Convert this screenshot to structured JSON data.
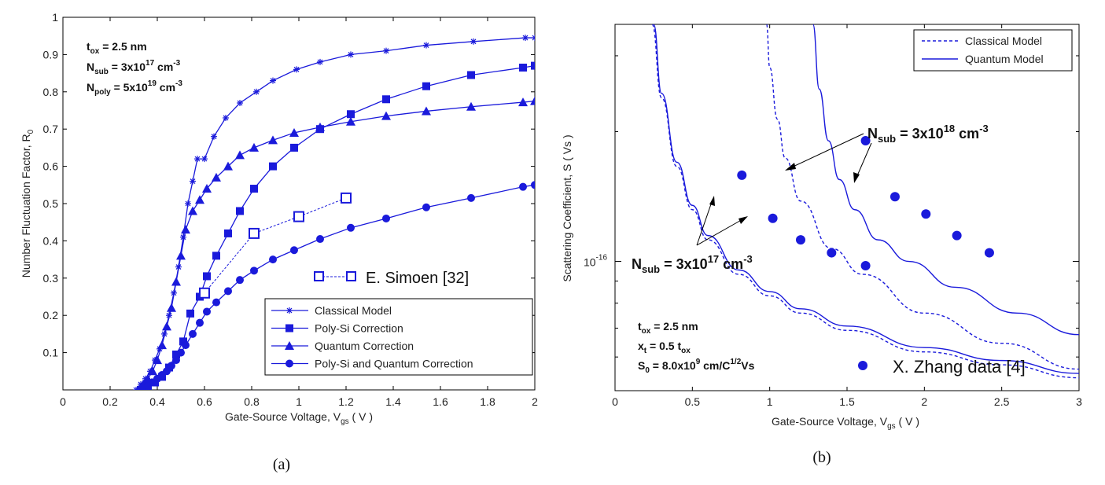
{
  "chart_data": [
    {
      "panel": "(a)",
      "type": "line",
      "xlabel": "Gate-Source Voltage, V",
      "xlabel_sub": "gs",
      "xlabel_tail": " ( V )",
      "ylabel": "Number Fluctuation Factor, R",
      "ylabel_sub": "0",
      "xlim": [
        0,
        2
      ],
      "ylim": [
        0,
        1
      ],
      "xticks": [
        "0",
        "0.2",
        "0.4",
        "0.6",
        "0.8",
        "1",
        "1.2",
        "1.4",
        "1.6",
        "1.8",
        "2"
      ],
      "yticks": [
        "0.1",
        "0.2",
        "0.3",
        "0.4",
        "0.5",
        "0.6",
        "0.7",
        "0.8",
        "0.9",
        "1"
      ],
      "annotations": {
        "tox": {
          "main": "t",
          "sub": "ox",
          "tail": " = 2.5 nm"
        },
        "nsub": {
          "main": "N",
          "sub": "sub",
          "mid": " = 3x10",
          "sup": "17",
          "tail": " cm",
          "sup2": "-3"
        },
        "npoly": {
          "main": "N",
          "sub": "poly",
          "mid": " = 5x10",
          "sup": "19",
          "tail": " cm",
          "sup2": "-3"
        }
      },
      "legend": [
        "Classical Model",
        "Poly-Si Correction",
        "Quantum Correction",
        "Poly-Si and Quantum Correction"
      ],
      "legend_placement": "bottom-right",
      "series": [
        {
          "name": "Classical Model",
          "marker": "star",
          "x": [
            0.31,
            0.33,
            0.35,
            0.37,
            0.39,
            0.41,
            0.43,
            0.45,
            0.47,
            0.49,
            0.51,
            0.53,
            0.55,
            0.57,
            0.6,
            0.64,
            0.69,
            0.75,
            0.82,
            0.89,
            0.99,
            1.09,
            1.22,
            1.37,
            1.54,
            1.74,
            1.96,
            2.0
          ],
          "y": [
            0.0,
            0.015,
            0.03,
            0.05,
            0.08,
            0.11,
            0.15,
            0.2,
            0.26,
            0.33,
            0.41,
            0.5,
            0.56,
            0.62,
            0.62,
            0.68,
            0.73,
            0.77,
            0.8,
            0.83,
            0.86,
            0.88,
            0.9,
            0.91,
            0.925,
            0.935,
            0.945,
            0.945
          ]
        },
        {
          "name": "Poly-Si Correction",
          "marker": "square",
          "x": [
            0.33,
            0.36,
            0.39,
            0.42,
            0.45,
            0.48,
            0.51,
            0.54,
            0.58,
            0.61,
            0.65,
            0.7,
            0.75,
            0.81,
            0.89,
            0.98,
            1.09,
            1.22,
            1.37,
            1.54,
            1.73,
            1.95,
            2.0
          ],
          "y": [
            0.0,
            0.01,
            0.02,
            0.035,
            0.06,
            0.095,
            0.13,
            0.205,
            0.25,
            0.305,
            0.36,
            0.42,
            0.48,
            0.54,
            0.6,
            0.65,
            0.7,
            0.74,
            0.78,
            0.815,
            0.845,
            0.865,
            0.87
          ]
        },
        {
          "name": "Quantum Correction",
          "marker": "triangle",
          "x": [
            0.32,
            0.34,
            0.36,
            0.38,
            0.4,
            0.42,
            0.44,
            0.46,
            0.48,
            0.5,
            0.52,
            0.55,
            0.58,
            0.61,
            0.65,
            0.7,
            0.75,
            0.81,
            0.89,
            0.98,
            1.09,
            1.22,
            1.37,
            1.54,
            1.73,
            1.95,
            2.0
          ],
          "y": [
            0.0,
            0.015,
            0.03,
            0.05,
            0.08,
            0.12,
            0.17,
            0.22,
            0.29,
            0.36,
            0.43,
            0.48,
            0.51,
            0.54,
            0.57,
            0.6,
            0.63,
            0.65,
            0.67,
            0.69,
            0.705,
            0.72,
            0.735,
            0.748,
            0.76,
            0.772,
            0.775
          ]
        },
        {
          "name": "Poly-Si and Quantum Correction",
          "marker": "circle",
          "x": [
            0.34,
            0.36,
            0.38,
            0.4,
            0.42,
            0.44,
            0.46,
            0.48,
            0.5,
            0.52,
            0.55,
            0.58,
            0.61,
            0.65,
            0.7,
            0.75,
            0.81,
            0.89,
            0.98,
            1.09,
            1.22,
            1.37,
            1.54,
            1.73,
            1.95,
            2.0
          ],
          "y": [
            0.0,
            0.01,
            0.02,
            0.03,
            0.04,
            0.05,
            0.065,
            0.08,
            0.1,
            0.12,
            0.15,
            0.18,
            0.21,
            0.235,
            0.265,
            0.295,
            0.32,
            0.35,
            0.375,
            0.405,
            0.435,
            0.46,
            0.49,
            0.515,
            0.545,
            0.55
          ]
        },
        {
          "name": "E. Simoen [32]",
          "marker": "open-square",
          "dashed": true,
          "x": [
            0.6,
            0.81,
            1.0,
            1.2
          ],
          "y": [
            0.26,
            0.42,
            0.465,
            0.515
          ]
        }
      ],
      "simoen_label": "E. Simoen [32]"
    },
    {
      "panel": "(b)",
      "type": "line",
      "xlabel": "Gate-Source Voltage, V",
      "xlabel_sub": "gs",
      "xlabel_tail": " ( V )",
      "ylabel": "Scattering Coefficient, S ( Vs )",
      "xlim": [
        0,
        3
      ],
      "yscale": "log",
      "ylim_decades": [
        -16.3,
        -15.45
      ],
      "ytick_label": {
        "base": "10",
        "exp": "-16"
      },
      "xticks": [
        "0",
        "0.5",
        "1",
        "1.5",
        "2",
        "2.5",
        "3"
      ],
      "legend": [
        "Classical Model",
        "Quantum Model"
      ],
      "legend_placement": "top-right",
      "annotations": {
        "nsub_high": {
          "main": "N",
          "sub": "sub",
          "mid": " = 3x10",
          "sup": "18",
          "tail": " cm",
          "sup2": "-3"
        },
        "nsub_low": {
          "main": "N",
          "sub": "sub",
          "mid": " = 3x10",
          "sup": "17",
          "tail": " cm",
          "sup2": "-3"
        },
        "tox": {
          "main": "t",
          "sub": "ox",
          "tail": " = 2.5 nm"
        },
        "xt": {
          "main": "x",
          "sub": "t",
          "mid": " = 0.5 t",
          "sub2": "ox"
        },
        "s0": {
          "main": "S",
          "sub": "0",
          "mid": " = 8.0x10",
          "sup": "9",
          "tail": " cm/C",
          "sup2": "1/2",
          "tail2": "Vs"
        },
        "zhang_label": "X. Zhang data [4]"
      },
      "series": [
        {
          "name": "Classical Model",
          "group": "Nsub 3x10^17",
          "style": "dashed",
          "x": [
            0.24,
            0.3,
            0.4,
            0.5,
            0.6,
            0.8,
            1.0,
            1.2,
            1.5,
            2.0,
            2.5,
            3.0
          ],
          "y_log10": [
            -15.45,
            -15.62,
            -15.78,
            -15.88,
            -15.95,
            -16.03,
            -16.08,
            -16.12,
            -16.16,
            -16.21,
            -16.24,
            -16.27
          ]
        },
        {
          "name": "Quantum Model",
          "group": "Nsub 3x10^17",
          "style": "solid",
          "x": [
            0.25,
            0.3,
            0.4,
            0.5,
            0.6,
            0.8,
            1.0,
            1.2,
            1.5,
            2.0,
            2.5,
            3.0
          ],
          "y_log10": [
            -15.45,
            -15.61,
            -15.77,
            -15.87,
            -15.94,
            -16.02,
            -16.07,
            -16.11,
            -16.15,
            -16.2,
            -16.23,
            -16.26
          ]
        },
        {
          "name": "Classical Model",
          "group": "Nsub 3x10^18",
          "style": "dashed",
          "x": [
            0.98,
            1.0,
            1.05,
            1.1,
            1.2,
            1.4,
            1.6,
            2.0,
            2.5,
            3.0
          ],
          "y_log10": [
            -15.45,
            -15.55,
            -15.67,
            -15.76,
            -15.86,
            -15.97,
            -16.03,
            -16.12,
            -16.19,
            -16.25
          ]
        },
        {
          "name": "Quantum Model",
          "group": "Nsub 3x10^18",
          "style": "solid",
          "x": [
            1.28,
            1.32,
            1.38,
            1.45,
            1.55,
            1.7,
            1.9,
            2.2,
            2.6,
            3.0
          ],
          "y_log10": [
            -15.45,
            -15.6,
            -15.72,
            -15.81,
            -15.88,
            -15.95,
            -16.0,
            -16.06,
            -16.12,
            -16.17
          ]
        },
        {
          "name": "X. Zhang data [4]",
          "marker": "circle",
          "x": [
            0.82,
            1.02,
            1.2,
            1.4,
            1.62,
            1.62,
            1.81,
            2.01,
            2.21,
            2.42
          ],
          "y_log10": [
            -15.8,
            -15.9,
            -15.95,
            -15.98,
            -16.01,
            -15.72,
            -15.85,
            -15.89,
            -15.94,
            -15.98
          ]
        }
      ]
    }
  ],
  "captions": [
    "(a)",
    "(b)"
  ]
}
